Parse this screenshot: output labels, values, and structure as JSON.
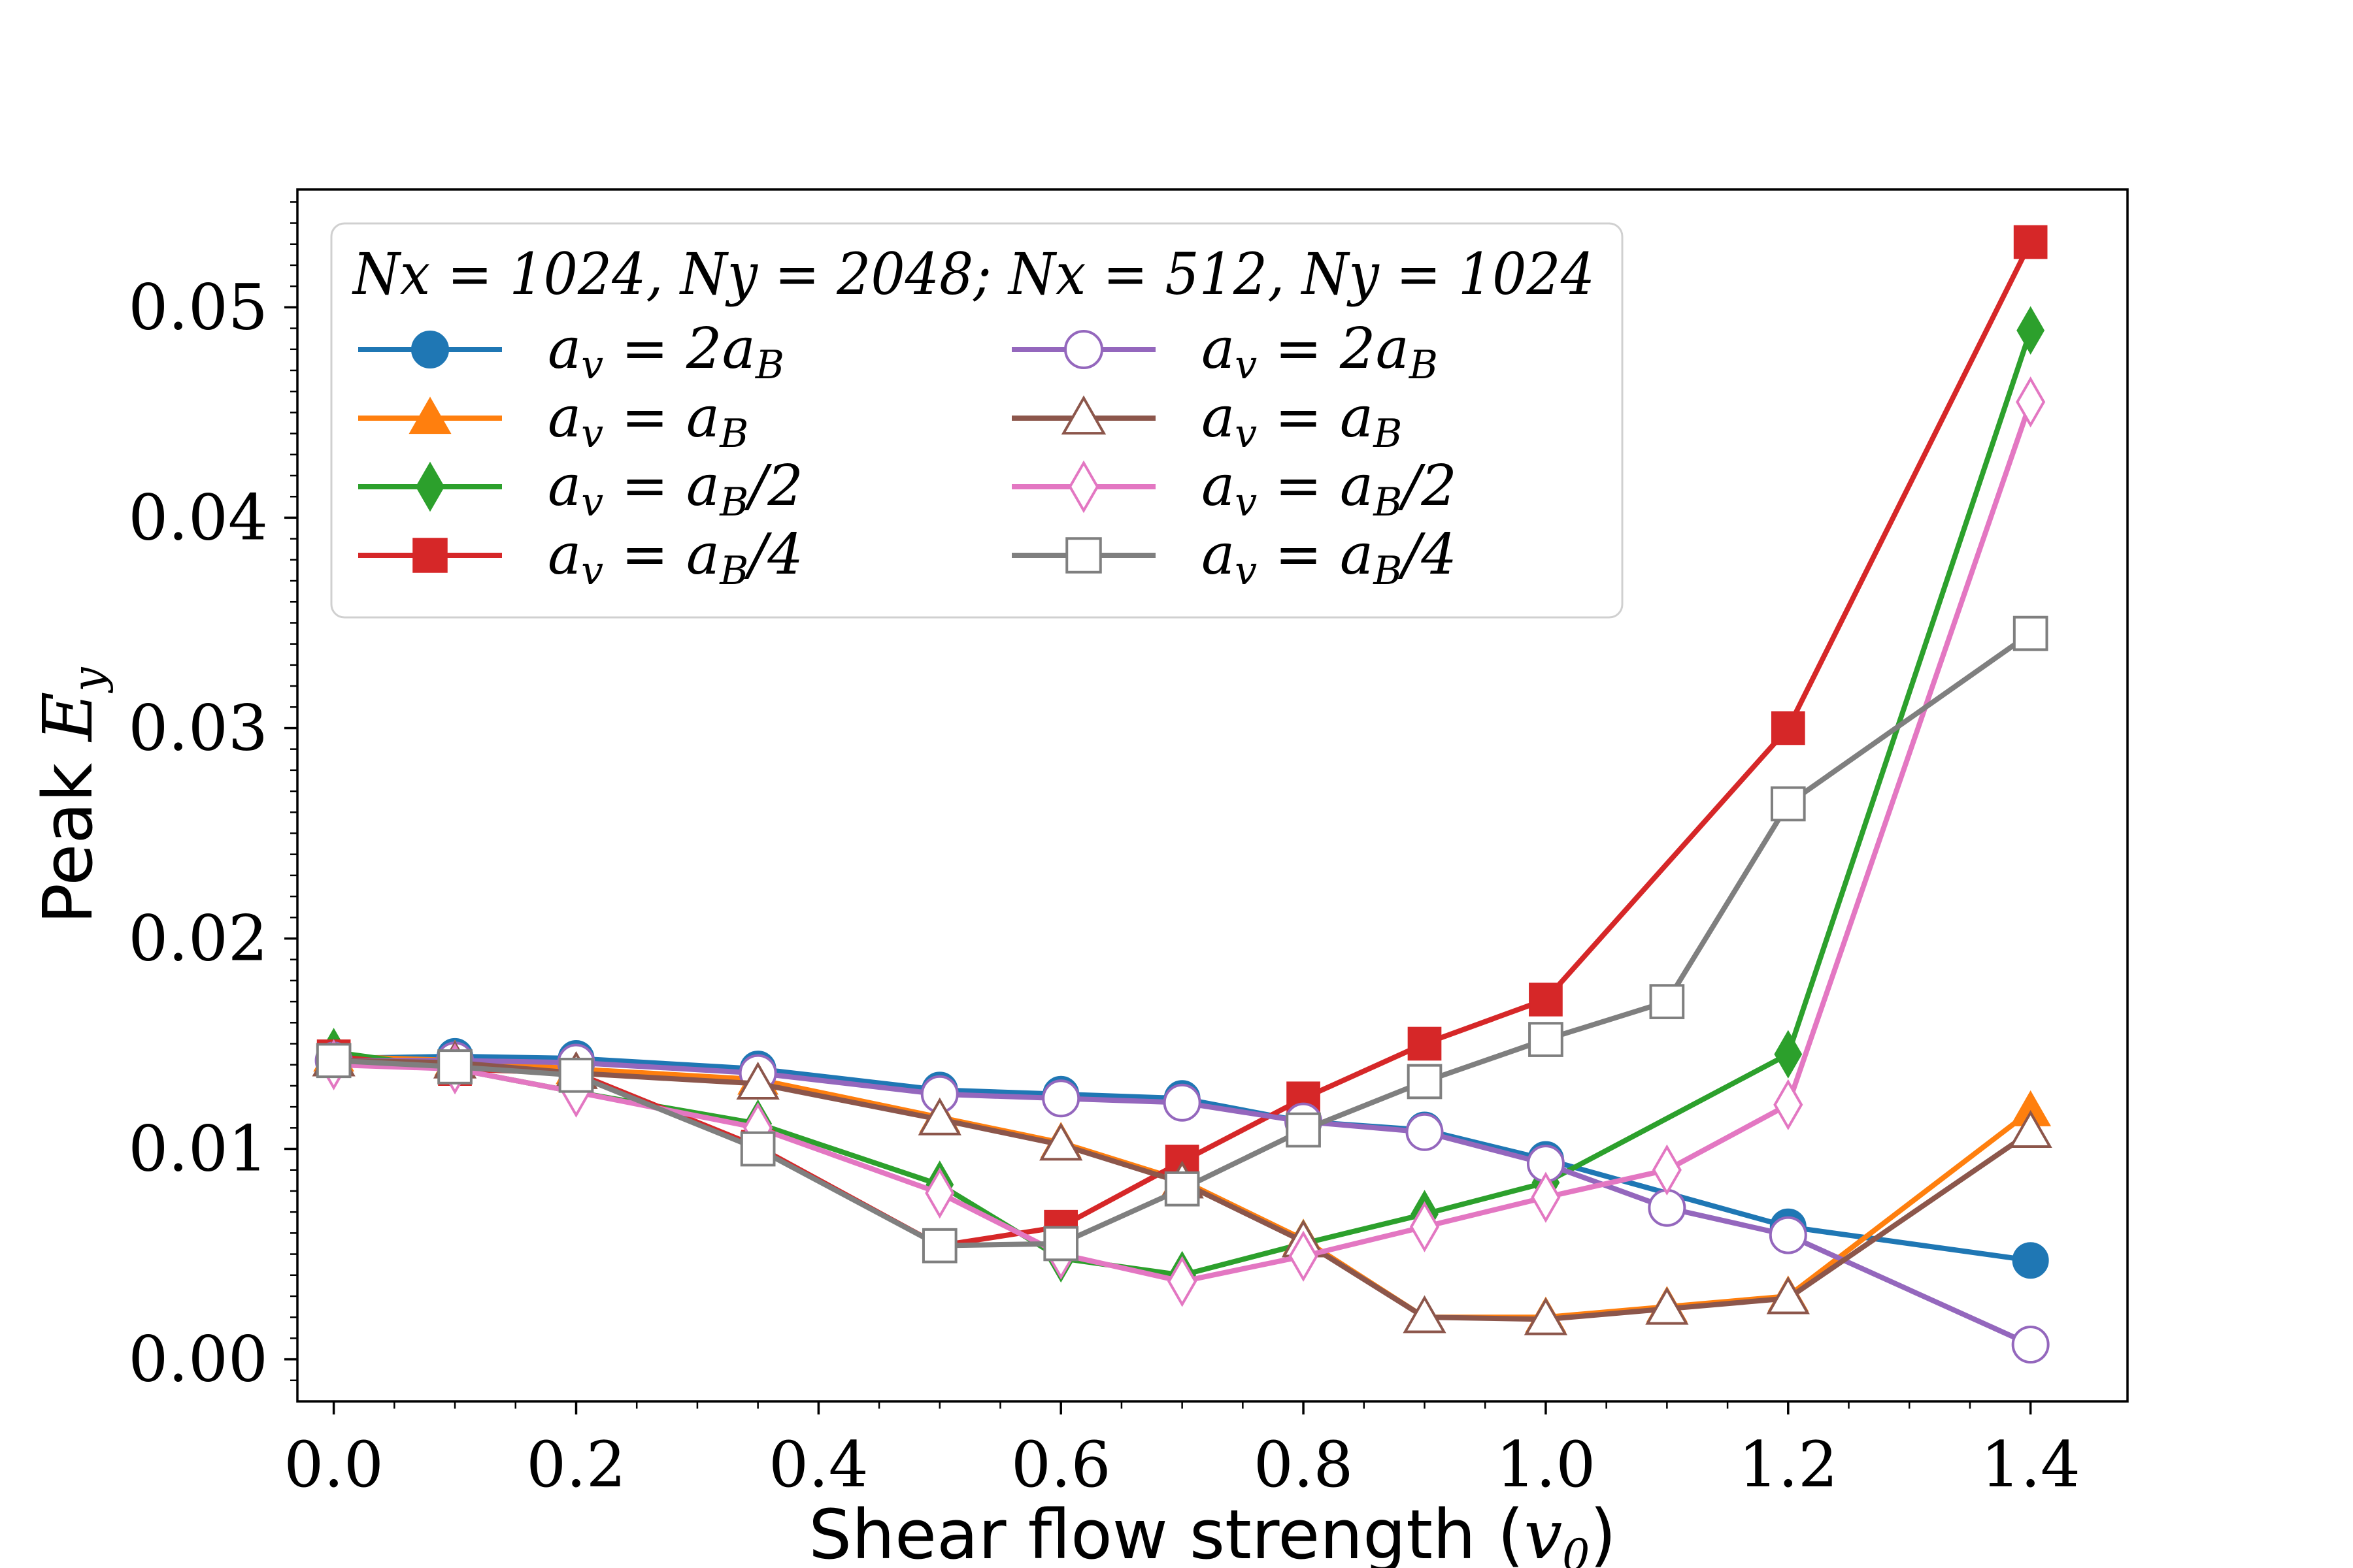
{
  "chart_data": {
    "type": "line",
    "xlabel": "Shear flow strength (v0)",
    "xlabel_parts": {
      "text": "Shear flow strength (",
      "var": "v",
      "sub": "0",
      "close": ")"
    },
    "ylabel": "Peak Ey",
    "ylabel_parts": {
      "text": "Peak ",
      "var": "E",
      "sub": "y"
    },
    "xlim": [
      -0.03,
      1.48
    ],
    "ylim": [
      -0.002,
      0.0556
    ],
    "x_ticks": [
      0.0,
      0.2,
      0.4,
      0.6,
      0.8,
      1.0,
      1.2,
      1.4
    ],
    "x_tick_labels": [
      "0.0",
      "0.2",
      "0.4",
      "0.6",
      "0.8",
      "1.0",
      "1.2",
      "1.4"
    ],
    "y_ticks": [
      0.0,
      0.01,
      0.02,
      0.03,
      0.04,
      0.05
    ],
    "y_tick_labels": [
      "0.00",
      "0.01",
      "0.02",
      "0.03",
      "0.04",
      "0.05"
    ],
    "grid": false,
    "legend": {
      "placement": "top-left",
      "title": "Nx = 1024, Ny = 2048; Nx = 512, Ny = 1024",
      "columns": 2
    },
    "series": [
      {
        "name": "av = 2aB",
        "label_rhs": "2a",
        "label_sub": "B",
        "label_tail": "",
        "color": "#1f77b4",
        "marker": "circle",
        "filled": true,
        "x": [
          0.0,
          0.1,
          0.2,
          0.35,
          0.5,
          0.6,
          0.7,
          0.8,
          0.9,
          1.0,
          1.2,
          1.4
        ],
        "y": [
          0.0143,
          0.0144,
          0.0143,
          0.0138,
          0.0128,
          0.0126,
          0.0124,
          0.0113,
          0.0109,
          0.0095,
          0.0063,
          0.0047
        ]
      },
      {
        "name": "av = aB",
        "label_rhs": "a",
        "label_sub": "B",
        "label_tail": "",
        "color": "#ff7f0e",
        "marker": "triangle",
        "filled": true,
        "x": [
          0.0,
          0.1,
          0.2,
          0.35,
          0.5,
          0.6,
          0.7,
          0.8,
          0.9,
          1.0,
          1.1,
          1.2,
          1.4
        ],
        "y": [
          0.0144,
          0.0142,
          0.0138,
          0.0133,
          0.0115,
          0.0103,
          0.0085,
          0.0057,
          0.002,
          0.002,
          0.0025,
          0.003,
          0.0118
        ]
      },
      {
        "name": "av = aB/2",
        "label_rhs": "a",
        "label_sub": "B",
        "label_tail": "/2",
        "color": "#2ca02c",
        "marker": "diamond",
        "filled": true,
        "x": [
          0.0,
          0.1,
          0.2,
          0.35,
          0.5,
          0.6,
          0.7,
          0.8,
          0.9,
          1.0,
          1.2,
          1.4
        ],
        "y": [
          0.0146,
          0.0138,
          0.0127,
          0.0112,
          0.0083,
          0.0048,
          0.004,
          0.0055,
          0.0069,
          0.0084,
          0.0145,
          0.0489
        ]
      },
      {
        "name": "av = aB/4",
        "label_rhs": "a",
        "label_sub": "B",
        "label_tail": "/4",
        "color": "#d62728",
        "marker": "square",
        "filled": true,
        "x": [
          0.0,
          0.1,
          0.2,
          0.35,
          0.5,
          0.6,
          0.7,
          0.8,
          0.9,
          1.0,
          1.2,
          1.4
        ],
        "y": [
          0.0144,
          0.0138,
          0.0136,
          0.0101,
          0.0054,
          0.0063,
          0.0094,
          0.0124,
          0.015,
          0.0171,
          0.03,
          0.0531
        ]
      },
      {
        "name": "av = 2aB",
        "label_rhs": "2a",
        "label_sub": "B",
        "label_tail": "",
        "color": "#9467bd",
        "marker": "circle",
        "filled": false,
        "x": [
          0.0,
          0.1,
          0.2,
          0.35,
          0.5,
          0.6,
          0.7,
          0.8,
          0.9,
          1.0,
          1.1,
          1.2,
          1.4
        ],
        "y": [
          0.0142,
          0.0142,
          0.0141,
          0.0136,
          0.0126,
          0.0124,
          0.0122,
          0.0113,
          0.0108,
          0.0093,
          0.0072,
          0.0059,
          0.0007
        ]
      },
      {
        "name": "av = aB",
        "label_rhs": "a",
        "label_sub": "B",
        "label_tail": "",
        "color": "#8c564b",
        "marker": "triangle",
        "filled": false,
        "x": [
          0.0,
          0.1,
          0.2,
          0.35,
          0.5,
          0.6,
          0.7,
          0.8,
          0.9,
          1.0,
          1.1,
          1.2,
          1.4
        ],
        "y": [
          0.0142,
          0.0141,
          0.0136,
          0.0131,
          0.0114,
          0.0102,
          0.0084,
          0.0056,
          0.002,
          0.0019,
          0.0024,
          0.0029,
          0.0108
        ]
      },
      {
        "name": "av = aB/2",
        "label_rhs": "a",
        "label_sub": "B",
        "label_tail": "/2",
        "color": "#e377c2",
        "marker": "diamond",
        "filled": false,
        "x": [
          0.0,
          0.1,
          0.2,
          0.35,
          0.5,
          0.6,
          0.7,
          0.8,
          0.9,
          1.0,
          1.1,
          1.2,
          1.4
        ],
        "y": [
          0.014,
          0.0138,
          0.0127,
          0.011,
          0.0079,
          0.005,
          0.0037,
          0.0049,
          0.0063,
          0.0077,
          0.009,
          0.0121,
          0.0455
        ]
      },
      {
        "name": "av = aB/4",
        "label_rhs": "a",
        "label_sub": "B",
        "label_tail": "/4",
        "color": "#7f7f7f",
        "marker": "square",
        "filled": false,
        "x": [
          0.0,
          0.1,
          0.2,
          0.35,
          0.5,
          0.6,
          0.7,
          0.8,
          0.9,
          1.0,
          1.1,
          1.2,
          1.4
        ],
        "y": [
          0.0142,
          0.0139,
          0.0135,
          0.01,
          0.0054,
          0.0055,
          0.0081,
          0.0109,
          0.0132,
          0.0152,
          0.017,
          0.0264,
          0.0345
        ]
      }
    ]
  }
}
